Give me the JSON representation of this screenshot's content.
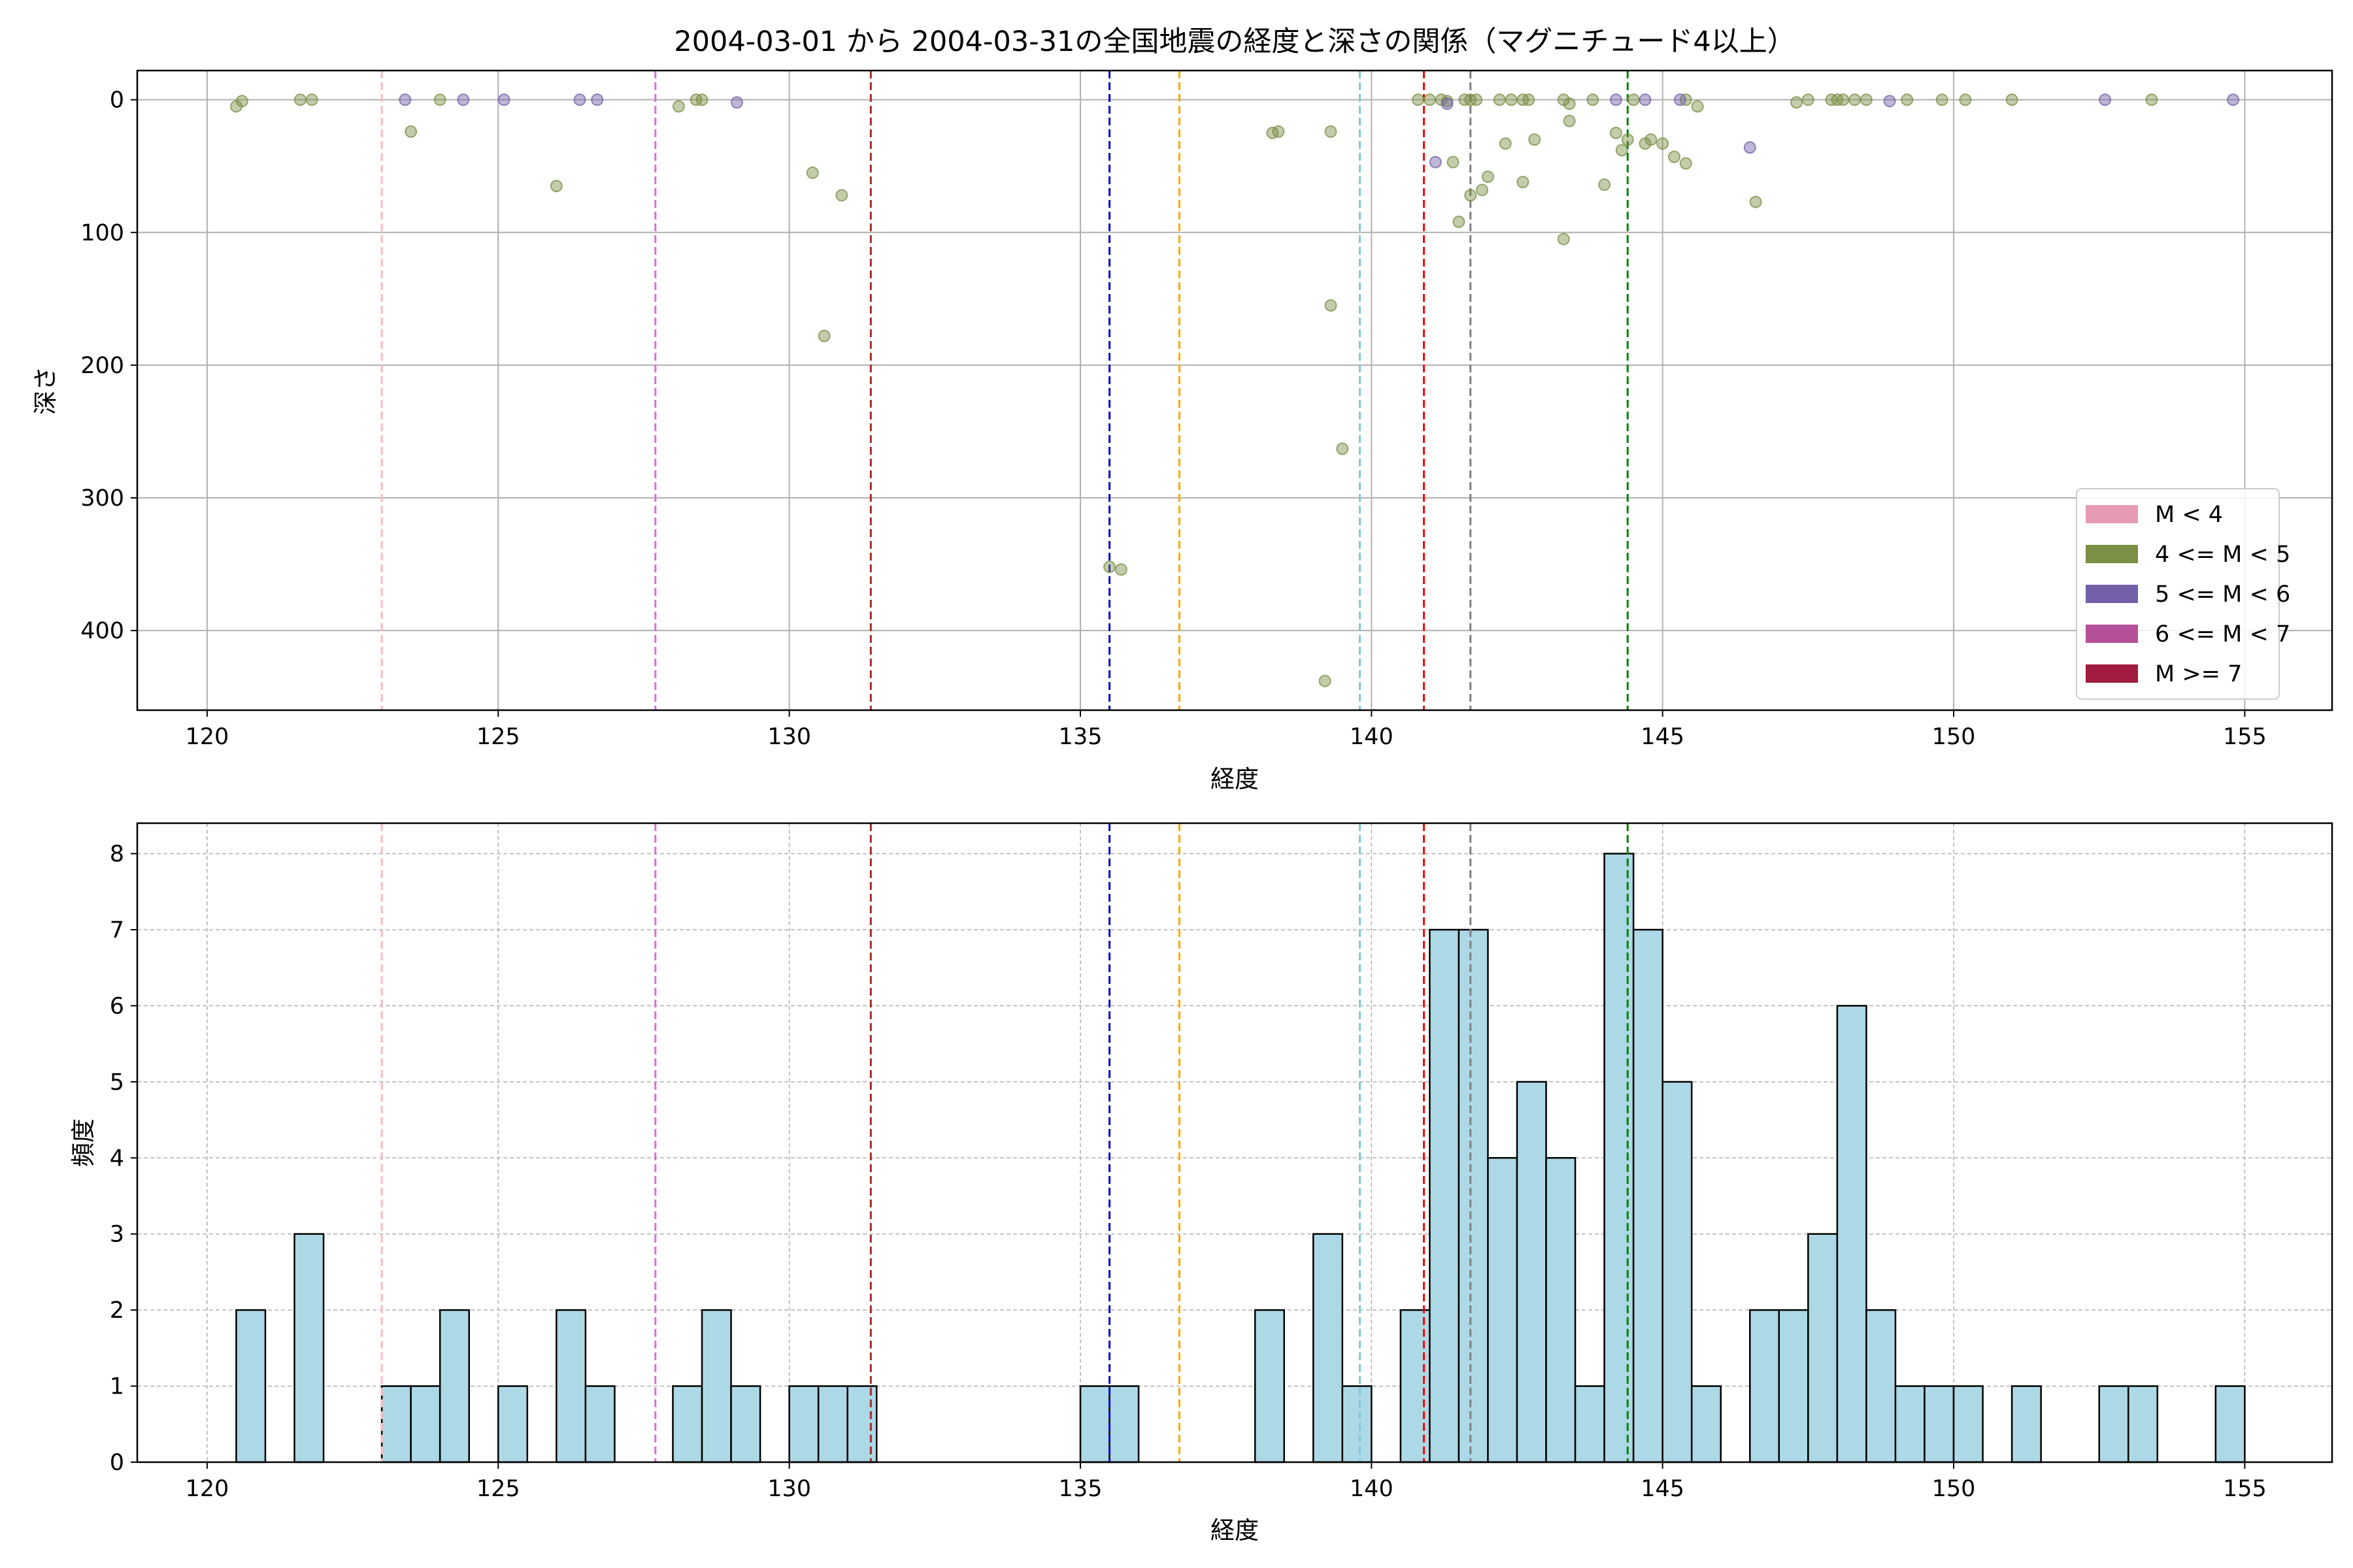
{
  "title": "2004-03-01 から 2004-03-31の全国地震の経度と深さの関係（マグニチュード4以上）",
  "chart_data": [
    {
      "type": "scatter",
      "xlabel": "経度",
      "ylabel": "深さ",
      "xlim": [
        118.8,
        156.5
      ],
      "ylim": [
        460,
        -22
      ],
      "y_inverted": true,
      "xticks": [
        120,
        125,
        130,
        135,
        140,
        145,
        150,
        155
      ],
      "yticks": [
        0,
        100,
        200,
        300,
        400
      ],
      "grid": true,
      "legend_position": "lower-right",
      "legend": [
        {
          "label": "M < 4",
          "color": "#e89ab4"
        },
        {
          "label": "4 <= M < 5",
          "color": "#7b8f45"
        },
        {
          "label": "5 <= M < 6",
          "color": "#7360a8"
        },
        {
          "label": "6 <= M < 7",
          "color": "#b5509a"
        },
        {
          "label": "M >= 7",
          "color": "#a11c3e"
        }
      ],
      "series": [
        {
          "legend_index": 1,
          "color": "#7b8f45",
          "points": [
            [
              120.5,
              5
            ],
            [
              120.6,
              1
            ],
            [
              121.6,
              0
            ],
            [
              121.8,
              0
            ],
            [
              123.5,
              24
            ],
            [
              124.0,
              0
            ],
            [
              126.0,
              65
            ],
            [
              128.1,
              5
            ],
            [
              128.4,
              0
            ],
            [
              128.5,
              0
            ],
            [
              130.4,
              55
            ],
            [
              130.6,
              178
            ],
            [
              130.9,
              72
            ],
            [
              135.5,
              352
            ],
            [
              135.7,
              354
            ],
            [
              138.3,
              25
            ],
            [
              138.4,
              24
            ],
            [
              139.2,
              438
            ],
            [
              139.3,
              24
            ],
            [
              139.3,
              155
            ],
            [
              139.5,
              263
            ],
            [
              140.8,
              0
            ],
            [
              141.0,
              0
            ],
            [
              141.2,
              0
            ],
            [
              141.3,
              1
            ],
            [
              141.4,
              47
            ],
            [
              141.5,
              92
            ],
            [
              141.6,
              0
            ],
            [
              141.7,
              0
            ],
            [
              141.7,
              72
            ],
            [
              141.8,
              0
            ],
            [
              141.9,
              68
            ],
            [
              142.0,
              58
            ],
            [
              142.2,
              0
            ],
            [
              142.3,
              33
            ],
            [
              142.4,
              0
            ],
            [
              142.6,
              0
            ],
            [
              142.6,
              62
            ],
            [
              142.7,
              0
            ],
            [
              142.8,
              30
            ],
            [
              143.3,
              0
            ],
            [
              143.3,
              105
            ],
            [
              143.4,
              16
            ],
            [
              143.4,
              3
            ],
            [
              143.8,
              0
            ],
            [
              144.0,
              64
            ],
            [
              144.2,
              25
            ],
            [
              144.3,
              38
            ],
            [
              144.4,
              30
            ],
            [
              144.5,
              0
            ],
            [
              144.7,
              33
            ],
            [
              144.8,
              30
            ],
            [
              145.0,
              33
            ],
            [
              145.2,
              43
            ],
            [
              145.4,
              0
            ],
            [
              145.4,
              48
            ],
            [
              145.6,
              5
            ],
            [
              146.6,
              77
            ],
            [
              147.3,
              2
            ],
            [
              147.5,
              0
            ],
            [
              147.9,
              0
            ],
            [
              148.0,
              0
            ],
            [
              148.1,
              0
            ],
            [
              148.3,
              0
            ],
            [
              148.5,
              0
            ],
            [
              149.2,
              0
            ],
            [
              149.8,
              0
            ],
            [
              150.2,
              0
            ],
            [
              151.0,
              0
            ],
            [
              153.4,
              0
            ]
          ]
        },
        {
          "legend_index": 2,
          "color": "#7360a8",
          "points": [
            [
              123.4,
              0
            ],
            [
              124.4,
              0
            ],
            [
              125.1,
              0
            ],
            [
              126.4,
              0
            ],
            [
              126.7,
              0
            ],
            [
              129.1,
              2
            ],
            [
              141.1,
              47
            ],
            [
              141.3,
              3
            ],
            [
              144.2,
              0
            ],
            [
              144.7,
              0
            ],
            [
              145.3,
              0
            ],
            [
              146.5,
              36
            ],
            [
              148.9,
              1
            ],
            [
              152.6,
              0
            ],
            [
              154.8,
              0
            ]
          ]
        }
      ],
      "reference_lines": [
        {
          "x": 123.0,
          "color": "#ffb6c1"
        },
        {
          "x": 127.7,
          "color": "#da70d6"
        },
        {
          "x": 131.4,
          "color": "#a52a2a"
        },
        {
          "x": 135.5,
          "color": "#0000cd"
        },
        {
          "x": 136.7,
          "color": "#ffa500"
        },
        {
          "x": 139.8,
          "color": "#7ec8d8"
        },
        {
          "x": 140.9,
          "color": "#ff0000"
        },
        {
          "x": 141.7,
          "color": "#808080"
        },
        {
          "x": 144.4,
          "color": "#008000"
        }
      ]
    },
    {
      "type": "bar",
      "subtype": "histogram",
      "xlabel": "経度",
      "ylabel": "頻度",
      "xlim": [
        118.8,
        156.5
      ],
      "ylim": [
        0,
        8.4
      ],
      "xticks": [
        120,
        125,
        130,
        135,
        140,
        145,
        150,
        155
      ],
      "yticks": [
        0,
        1,
        2,
        3,
        4,
        5,
        6,
        7,
        8
      ],
      "grid": true,
      "bar_color": "#add8e6",
      "edge_color": "#000000",
      "bin_width": 0.5,
      "bins": [
        [
          120.5,
          2
        ],
        [
          121.5,
          3
        ],
        [
          123.0,
          1
        ],
        [
          123.5,
          1
        ],
        [
          124.0,
          2
        ],
        [
          125.0,
          1
        ],
        [
          126.0,
          2
        ],
        [
          126.5,
          1
        ],
        [
          128.0,
          1
        ],
        [
          128.5,
          2
        ],
        [
          129.0,
          1
        ],
        [
          130.0,
          1
        ],
        [
          130.5,
          1
        ],
        [
          131.0,
          1
        ],
        [
          135.0,
          1
        ],
        [
          135.5,
          1
        ],
        [
          138.0,
          2
        ],
        [
          139.0,
          3
        ],
        [
          139.5,
          1
        ],
        [
          140.5,
          2
        ],
        [
          141.0,
          7
        ],
        [
          141.5,
          7
        ],
        [
          142.0,
          4
        ],
        [
          142.5,
          5
        ],
        [
          143.0,
          4
        ],
        [
          143.5,
          1
        ],
        [
          144.0,
          8
        ],
        [
          144.5,
          7
        ],
        [
          145.0,
          5
        ],
        [
          145.5,
          1
        ],
        [
          146.5,
          2
        ],
        [
          147.0,
          2
        ],
        [
          147.5,
          3
        ],
        [
          148.0,
          6
        ],
        [
          148.5,
          2
        ],
        [
          149.0,
          1
        ],
        [
          149.5,
          1
        ],
        [
          150.0,
          1
        ],
        [
          151.0,
          1
        ],
        [
          152.5,
          1
        ],
        [
          153.0,
          1
        ],
        [
          154.5,
          1
        ]
      ],
      "reference_lines": [
        {
          "x": 123.0,
          "color": "#ffb6c1"
        },
        {
          "x": 127.7,
          "color": "#da70d6"
        },
        {
          "x": 131.4,
          "color": "#a52a2a"
        },
        {
          "x": 135.5,
          "color": "#0000cd"
        },
        {
          "x": 136.7,
          "color": "#ffa500"
        },
        {
          "x": 139.8,
          "color": "#7ec8d8"
        },
        {
          "x": 140.9,
          "color": "#ff0000"
        },
        {
          "x": 141.7,
          "color": "#808080"
        },
        {
          "x": 144.4,
          "color": "#008000"
        }
      ]
    }
  ]
}
